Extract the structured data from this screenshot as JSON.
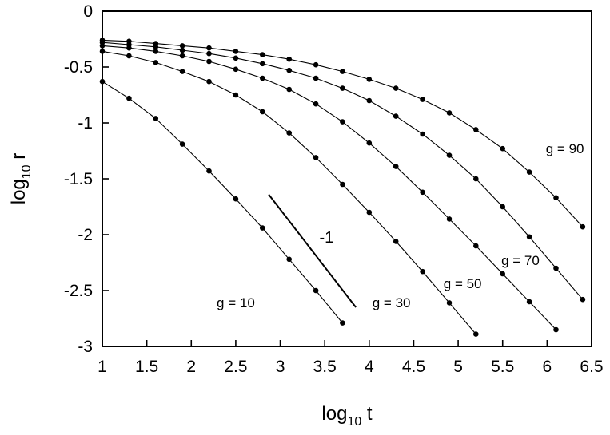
{
  "chart_data": {
    "type": "line",
    "xlabel": {
      "base": "log",
      "sub": "10",
      "var": " t"
    },
    "ylabel": {
      "base": "log",
      "sub": "10",
      "var": " r"
    },
    "xlim": [
      1,
      6.5
    ],
    "ylim": [
      -3,
      0
    ],
    "x_ticks": [
      "1",
      "1.5",
      "2",
      "2.5",
      "3",
      "3.5",
      "4",
      "4.5",
      "5",
      "5.5",
      "6",
      "6.5"
    ],
    "y_ticks": [
      "0",
      "-0.5",
      "-1",
      "-1.5",
      "-2",
      "-2.5",
      "-3"
    ],
    "grid": false,
    "series": [
      {
        "name": "g = 10",
        "label_at": [
          2.5,
          -2.65
        ],
        "x": [
          1.0,
          1.3,
          1.6,
          1.9,
          2.2,
          2.5,
          2.8,
          3.1,
          3.4,
          3.7
        ],
        "y": [
          -0.63,
          -0.78,
          -0.96,
          -1.19,
          -1.43,
          -1.68,
          -1.94,
          -2.22,
          -2.5,
          -2.79
        ]
      },
      {
        "name": "g = 30",
        "label_at": [
          4.25,
          -2.65
        ],
        "x": [
          1.0,
          1.3,
          1.6,
          1.9,
          2.2,
          2.5,
          2.8,
          3.1,
          3.4,
          3.7,
          4.0,
          4.3,
          4.6,
          4.9,
          5.2
        ],
        "y": [
          -0.36,
          -0.4,
          -0.46,
          -0.54,
          -0.63,
          -0.75,
          -0.9,
          -1.09,
          -1.31,
          -1.55,
          -1.8,
          -2.06,
          -2.33,
          -2.61,
          -2.89
        ]
      },
      {
        "name": "g = 50",
        "label_at": [
          5.05,
          -2.48
        ],
        "x": [
          1.0,
          1.3,
          1.6,
          1.9,
          2.2,
          2.5,
          2.8,
          3.1,
          3.4,
          3.7,
          4.0,
          4.3,
          4.6,
          4.9,
          5.2,
          5.5,
          5.8,
          6.1
        ],
        "y": [
          -0.31,
          -0.33,
          -0.36,
          -0.4,
          -0.45,
          -0.52,
          -0.6,
          -0.7,
          -0.83,
          -0.99,
          -1.18,
          -1.39,
          -1.62,
          -1.86,
          -2.1,
          -2.35,
          -2.6,
          -2.85
        ]
      },
      {
        "name": "g = 70",
        "label_at": [
          5.7,
          -2.27
        ],
        "x": [
          1.0,
          1.3,
          1.6,
          1.9,
          2.2,
          2.5,
          2.8,
          3.1,
          3.4,
          3.7,
          4.0,
          4.3,
          4.6,
          4.9,
          5.2,
          5.5,
          5.8,
          6.1,
          6.4
        ],
        "y": [
          -0.28,
          -0.3,
          -0.32,
          -0.35,
          -0.38,
          -0.42,
          -0.47,
          -0.53,
          -0.6,
          -0.69,
          -0.8,
          -0.94,
          -1.1,
          -1.29,
          -1.5,
          -1.75,
          -2.02,
          -2.3,
          -2.58
        ]
      },
      {
        "name": "g = 90",
        "label_at": [
          6.2,
          -1.27
        ],
        "x": [
          1.0,
          1.3,
          1.6,
          1.9,
          2.2,
          2.5,
          2.8,
          3.1,
          3.4,
          3.7,
          4.0,
          4.3,
          4.6,
          4.9,
          5.2,
          5.5,
          5.8,
          6.1,
          6.4
        ],
        "y": [
          -0.26,
          -0.27,
          -0.29,
          -0.31,
          -0.33,
          -0.36,
          -0.39,
          -0.43,
          -0.48,
          -0.54,
          -0.61,
          -0.69,
          -0.79,
          -0.91,
          -1.06,
          -1.23,
          -1.44,
          -1.67,
          -1.93
        ]
      }
    ],
    "annotations": [
      {
        "type": "line",
        "x": [
          2.87,
          3.85
        ],
        "y": [
          -1.64,
          -2.65
        ]
      },
      {
        "type": "text",
        "text": "-1",
        "x": 3.52,
        "y": -2.07
      }
    ]
  }
}
